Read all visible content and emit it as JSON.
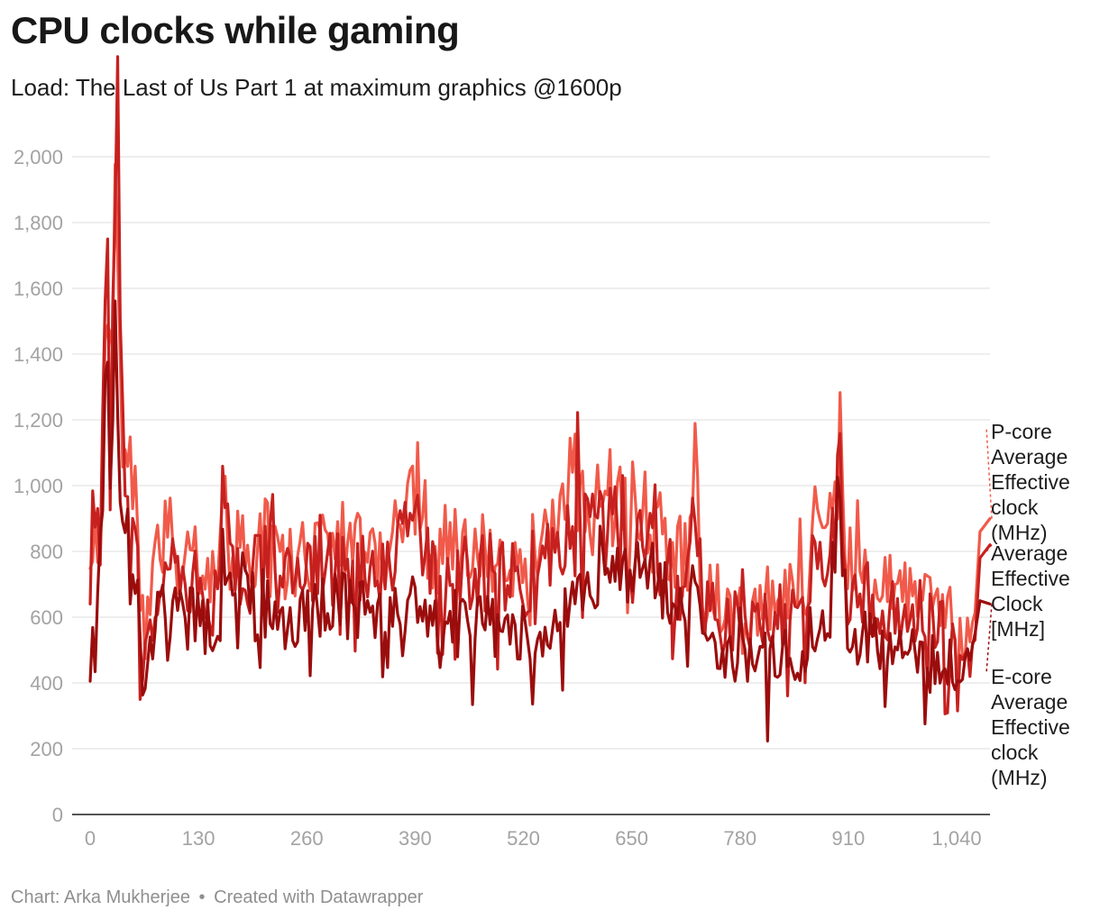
{
  "title": "CPU clocks while gaming",
  "subtitle": "Load: The Last of Us Part 1 at maximum graphics @1600p",
  "footer": {
    "chart_by": "Chart: Arka Mukherjee",
    "separator": "•",
    "created_with": "Created with Datawrapper"
  },
  "chart_data": {
    "type": "line",
    "title": "CPU clocks while gaming",
    "subtitle": "Load: The Last of Us Part 1 at maximum graphics @1600p",
    "xlabel": "",
    "ylabel": "",
    "x_range": [
      0,
      1080
    ],
    "ylim": [
      0,
      2000
    ],
    "x_ticks": [
      0,
      130,
      260,
      390,
      520,
      650,
      780,
      910,
      1040
    ],
    "y_ticks": [
      0,
      200,
      400,
      600,
      800,
      1000,
      1200,
      1400,
      1600,
      1800,
      2000
    ],
    "grid": "horizontal",
    "legend": "direct labels at right end of lines",
    "series": [
      {
        "name": "P-core Average Effective clock (MHz)",
        "color": "#f15a4a",
        "keyframes": [
          [
            0,
            830
          ],
          [
            8,
            760
          ],
          [
            12,
            950
          ],
          [
            16,
            1300
          ],
          [
            20,
            2000
          ],
          [
            24,
            1250
          ],
          [
            28,
            1700
          ],
          [
            34,
            2075
          ],
          [
            38,
            1150
          ],
          [
            42,
            1400
          ],
          [
            48,
            1050
          ],
          [
            56,
            850
          ],
          [
            62,
            650
          ],
          [
            66,
            500
          ],
          [
            74,
            720
          ],
          [
            90,
            820
          ],
          [
            110,
            740
          ],
          [
            130,
            760
          ],
          [
            150,
            700
          ],
          [
            160,
            1100
          ],
          [
            168,
            820
          ],
          [
            190,
            800
          ],
          [
            210,
            850
          ],
          [
            240,
            760
          ],
          [
            260,
            800
          ],
          [
            300,
            820
          ],
          [
            340,
            790
          ],
          [
            370,
            860
          ],
          [
            390,
            1000
          ],
          [
            410,
            800
          ],
          [
            440,
            820
          ],
          [
            480,
            800
          ],
          [
            520,
            780
          ],
          [
            560,
            860
          ],
          [
            580,
            1010
          ],
          [
            600,
            900
          ],
          [
            620,
            960
          ],
          [
            650,
            920
          ],
          [
            680,
            880
          ],
          [
            700,
            760
          ],
          [
            720,
            800
          ],
          [
            727,
            1100
          ],
          [
            734,
            700
          ],
          [
            760,
            640
          ],
          [
            800,
            640
          ],
          [
            830,
            660
          ],
          [
            860,
            700
          ],
          [
            875,
            1030
          ],
          [
            885,
            760
          ],
          [
            900,
            1150
          ],
          [
            910,
            780
          ],
          [
            940,
            700
          ],
          [
            960,
            690
          ],
          [
            1000,
            670
          ],
          [
            1040,
            580
          ],
          [
            1050,
            520
          ],
          [
            1060,
            580
          ],
          [
            1068,
            860
          ],
          [
            1080,
            900
          ]
        ]
      },
      {
        "name": "Average Effective Clock [MHz]",
        "color": "#c6211f",
        "keyframes": [
          [
            0,
            780
          ],
          [
            8,
            730
          ],
          [
            12,
            900
          ],
          [
            16,
            1200
          ],
          [
            20,
            1900
          ],
          [
            24,
            1150
          ],
          [
            28,
            1600
          ],
          [
            34,
            1950
          ],
          [
            38,
            1050
          ],
          [
            42,
            1250
          ],
          [
            48,
            950
          ],
          [
            56,
            780
          ],
          [
            60,
            420
          ],
          [
            66,
            520
          ],
          [
            74,
            620
          ],
          [
            90,
            760
          ],
          [
            110,
            680
          ],
          [
            130,
            700
          ],
          [
            150,
            640
          ],
          [
            160,
            1000
          ],
          [
            168,
            740
          ],
          [
            190,
            720
          ],
          [
            210,
            770
          ],
          [
            240,
            690
          ],
          [
            260,
            720
          ],
          [
            300,
            740
          ],
          [
            340,
            720
          ],
          [
            370,
            780
          ],
          [
            390,
            900
          ],
          [
            410,
            730
          ],
          [
            440,
            740
          ],
          [
            480,
            730
          ],
          [
            520,
            720
          ],
          [
            560,
            780
          ],
          [
            580,
            920
          ],
          [
            600,
            830
          ],
          [
            620,
            880
          ],
          [
            650,
            840
          ],
          [
            680,
            800
          ],
          [
            700,
            700
          ],
          [
            720,
            730
          ],
          [
            727,
            1000
          ],
          [
            734,
            640
          ],
          [
            760,
            580
          ],
          [
            800,
            580
          ],
          [
            830,
            600
          ],
          [
            860,
            640
          ],
          [
            875,
            940
          ],
          [
            885,
            690
          ],
          [
            900,
            1050
          ],
          [
            910,
            710
          ],
          [
            940,
            640
          ],
          [
            960,
            630
          ],
          [
            1000,
            610
          ],
          [
            1040,
            530
          ],
          [
            1050,
            480
          ],
          [
            1060,
            530
          ],
          [
            1068,
            780
          ],
          [
            1080,
            820
          ]
        ]
      },
      {
        "name": "E-core Average Effective clock (MHz)",
        "color": "#9b0d0d",
        "keyframes": [
          [
            0,
            510
          ],
          [
            6,
            520
          ],
          [
            10,
            560
          ],
          [
            14,
            900
          ],
          [
            18,
            1100
          ],
          [
            22,
            1300
          ],
          [
            26,
            1000
          ],
          [
            30,
            1380
          ],
          [
            34,
            1100
          ],
          [
            38,
            900
          ],
          [
            44,
            800
          ],
          [
            52,
            700
          ],
          [
            58,
            600
          ],
          [
            62,
            330
          ],
          [
            66,
            450
          ],
          [
            74,
            560
          ],
          [
            90,
            620
          ],
          [
            110,
            580
          ],
          [
            130,
            600
          ],
          [
            150,
            560
          ],
          [
            160,
            640
          ],
          [
            168,
            700
          ],
          [
            190,
            640
          ],
          [
            210,
            620
          ],
          [
            240,
            600
          ],
          [
            260,
            620
          ],
          [
            300,
            640
          ],
          [
            340,
            600
          ],
          [
            370,
            620
          ],
          [
            390,
            640
          ],
          [
            410,
            580
          ],
          [
            440,
            600
          ],
          [
            480,
            580
          ],
          [
            520,
            560
          ],
          [
            550,
            500
          ],
          [
            580,
            640
          ],
          [
            600,
            720
          ],
          [
            620,
            800
          ],
          [
            650,
            720
          ],
          [
            680,
            700
          ],
          [
            700,
            620
          ],
          [
            720,
            600
          ],
          [
            727,
            800
          ],
          [
            734,
            540
          ],
          [
            760,
            480
          ],
          [
            800,
            470
          ],
          [
            830,
            500
          ],
          [
            850,
            400
          ],
          [
            860,
            520
          ],
          [
            875,
            600
          ],
          [
            885,
            560
          ],
          [
            900,
            1000
          ],
          [
            910,
            560
          ],
          [
            940,
            520
          ],
          [
            960,
            500
          ],
          [
            1000,
            480
          ],
          [
            1040,
            450
          ],
          [
            1050,
            440
          ],
          [
            1060,
            460
          ],
          [
            1068,
            650
          ],
          [
            1080,
            640
          ]
        ]
      }
    ]
  }
}
